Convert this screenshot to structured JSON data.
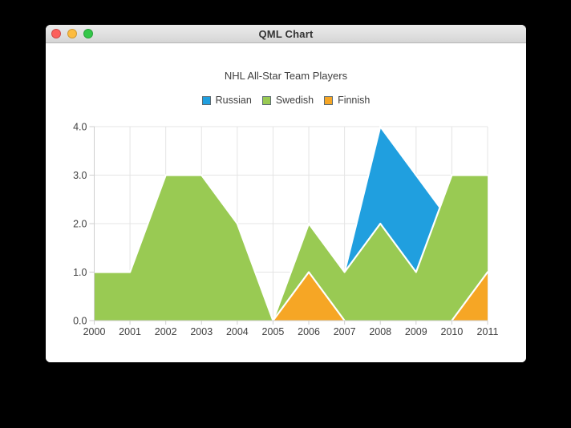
{
  "window": {
    "title": "QML Chart"
  },
  "colors": {
    "traffic_red": "#fc605c",
    "traffic_yellow": "#fdbc40",
    "traffic_green": "#34c749",
    "series_outline": "#ffffff",
    "grid": "#e4e4e4",
    "axis": "#cfcfcf",
    "text": "#404040"
  },
  "chart_data": {
    "type": "area",
    "title": "NHL All-Star Team Players",
    "legend_position": "top",
    "grid": true,
    "x": [
      2000,
      2001,
      2002,
      2003,
      2004,
      2005,
      2006,
      2007,
      2008,
      2009,
      2010,
      2011
    ],
    "x_tick_labels": [
      "2000",
      "2001",
      "2002",
      "2003",
      "2004",
      "2005",
      "2006",
      "2007",
      "2008",
      "2009",
      "2010",
      "2011"
    ],
    "y_tick_labels": [
      "4.0",
      "3.0",
      "2.0",
      "1.0",
      "0.0"
    ],
    "xlim": [
      2000,
      2011
    ],
    "ylim": [
      0,
      4
    ],
    "xlabel": "",
    "ylabel": "",
    "series": [
      {
        "name": "Russian",
        "color": "#209fdf",
        "values": [
          1,
          1,
          1,
          1,
          1,
          0,
          1,
          1,
          4,
          3,
          2,
          1
        ]
      },
      {
        "name": "Swedish",
        "color": "#99ca53",
        "values": [
          1,
          1,
          3,
          3,
          2,
          0,
          2,
          1,
          2,
          1,
          3,
          3
        ]
      },
      {
        "name": "Finnish",
        "color": "#f6a625",
        "values": [
          0,
          0,
          0,
          0,
          0,
          0,
          1,
          0,
          0,
          0,
          0,
          1
        ]
      }
    ]
  }
}
